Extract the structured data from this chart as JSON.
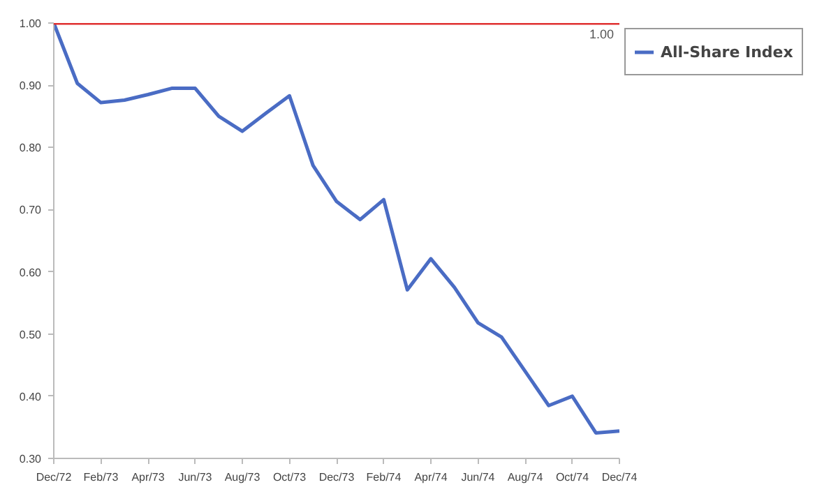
{
  "chart_data": {
    "type": "line",
    "categories": [
      "Dec/72",
      null,
      "Feb/73",
      null,
      "Apr/73",
      null,
      "Jun/73",
      null,
      "Aug/73",
      null,
      "Oct/73",
      null,
      "Dec/73",
      null,
      "Feb/74",
      null,
      "Apr/74",
      null,
      "Jun/74",
      null,
      "Aug/74",
      null,
      "Oct/74",
      null,
      "Dec/74"
    ],
    "series": [
      {
        "name": "All-Share Index",
        "color": "#4a6cc4",
        "values": [
          1.0,
          0.903,
          0.872,
          0.876,
          0.885,
          0.895,
          0.895,
          0.85,
          0.826,
          0.855,
          0.883,
          0.771,
          0.713,
          0.684,
          0.716,
          0.571,
          0.621,
          0.575,
          0.518,
          0.495,
          0.44,
          0.385,
          0.4,
          0.341,
          0.344
        ]
      }
    ],
    "ylim": [
      0.3,
      1.0
    ],
    "yticks": [
      {
        "value": 0.3,
        "label": "0.30"
      },
      {
        "value": 0.4,
        "label": "0.40"
      },
      {
        "value": 0.5,
        "label": "0.50"
      },
      {
        "value": 0.6,
        "label": "0.60"
      },
      {
        "value": 0.7,
        "label": "0.70"
      },
      {
        "value": 0.8,
        "label": "0.80"
      },
      {
        "value": 0.9,
        "label": "0.90"
      },
      {
        "value": 1.0,
        "label": "1.00"
      }
    ],
    "ref_lines": [
      {
        "axis": "y",
        "value": 1.0,
        "label": "1.00",
        "color": "#e03030"
      }
    ],
    "legend": "top right",
    "grid": false
  }
}
